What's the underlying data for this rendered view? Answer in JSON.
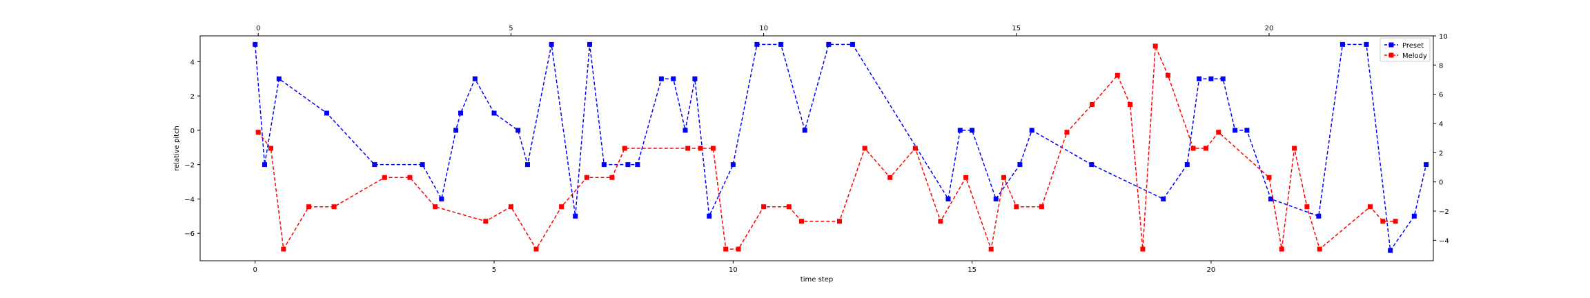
{
  "chart_data": {
    "type": "line",
    "xlabel": "time step",
    "ylabel": "relative pitch",
    "grid": false,
    "legend_position": "top-right",
    "x_bottom": {
      "lim": [
        -1.15,
        24.65
      ],
      "ticks": [
        0,
        5,
        10,
        15,
        20
      ],
      "tick_labels": [
        "0",
        "5",
        "10",
        "15",
        "20"
      ]
    },
    "x_top": {
      "lim": [
        -1.15,
        23.25
      ],
      "ticks": [
        0,
        5,
        10,
        15,
        20
      ],
      "tick_labels": [
        "0",
        "5",
        "10",
        "15",
        "20"
      ]
    },
    "y_left": {
      "lim": [
        -7.6,
        5.5
      ],
      "ticks": [
        -6,
        -4,
        -2,
        0,
        2,
        4
      ],
      "tick_labels": [
        "−6",
        "−4",
        "−2",
        "0",
        "2",
        "4"
      ]
    },
    "y_right": {
      "lim": [
        -5.4,
        10.0
      ],
      "ticks": [
        -4,
        -2,
        0,
        2,
        4,
        6,
        8,
        10
      ],
      "tick_labels": [
        "−4",
        "−2",
        "0",
        "2",
        "4",
        "6",
        "8",
        "10"
      ]
    },
    "series": [
      {
        "name": "Preset",
        "color": "#0000ff",
        "marker": "square",
        "linestyle": "dashed",
        "x_axis": "bottom",
        "y_axis": "left",
        "x": [
          0,
          0.2,
          0.5,
          1.5,
          2.5,
          3.5,
          3.9,
          4.2,
          4.3,
          4.6,
          5.0,
          5.5,
          5.7,
          6.2,
          6.7,
          7.0,
          7.3,
          7.8,
          8.0,
          8.5,
          8.75,
          9.0,
          9.2,
          9.5,
          10.0,
          10.5,
          11.0,
          11.5,
          12.0,
          12.5,
          14.5,
          14.75,
          15.0,
          15.5,
          16.0,
          16.25,
          17.5,
          19.0,
          19.5,
          19.75,
          20.0,
          20.25,
          20.5,
          20.75,
          21.25,
          22.25,
          22.75,
          23.25,
          23.75,
          24.25,
          24.5
        ],
        "y": [
          5,
          -2,
          3,
          1,
          -2,
          -2,
          -4,
          0,
          1,
          3,
          1,
          0,
          -2,
          5,
          -5,
          5,
          -2,
          -2,
          -2,
          3,
          3,
          0,
          3,
          -5,
          -2,
          5,
          5,
          0,
          5,
          5,
          -4,
          0,
          0,
          -4,
          -2,
          0,
          -2,
          -4,
          -2,
          3,
          3,
          3,
          0,
          0,
          -4,
          -5,
          5,
          5,
          -7,
          -5,
          -2
        ]
      },
      {
        "name": "Melody",
        "color": "#ff0000",
        "marker": "square",
        "linestyle": "dashed",
        "x_axis": "top",
        "y_axis": "right",
        "x": [
          0,
          0.25,
          0.5,
          1.0,
          1.5,
          2.5,
          3.0,
          3.5,
          4.5,
          5.0,
          5.5,
          6.0,
          6.5,
          7.0,
          7.25,
          8.5,
          8.75,
          9.0,
          9.25,
          9.5,
          10.0,
          10.5,
          10.75,
          11.5,
          12.0,
          12.5,
          13.0,
          13.5,
          14.0,
          14.5,
          14.75,
          15.0,
          15.5,
          16.0,
          16.5,
          17.0,
          17.25,
          17.5,
          17.75,
          18.0,
          18.5,
          18.75,
          19.0,
          20.0,
          20.25,
          20.5,
          20.75,
          21.0,
          22.0,
          22.25,
          22.5
        ],
        "y": [
          3.4,
          2.3,
          -4.6,
          -1.7,
          -1.7,
          0.3,
          0.3,
          -1.7,
          -2.7,
          -1.7,
          -4.6,
          -1.7,
          0.3,
          0.3,
          2.3,
          2.3,
          2.3,
          2.3,
          -4.6,
          -4.6,
          -1.7,
          -1.7,
          -2.7,
          -2.7,
          2.3,
          0.3,
          2.3,
          -2.7,
          0.3,
          -4.6,
          0.3,
          -1.7,
          -1.7,
          3.4,
          5.3,
          7.3,
          5.3,
          -4.6,
          9.3,
          7.3,
          2.3,
          2.3,
          3.4,
          0.3,
          -4.6,
          2.3,
          -1.7,
          -4.6,
          -1.7,
          -2.7,
          -2.7
        ]
      }
    ]
  }
}
